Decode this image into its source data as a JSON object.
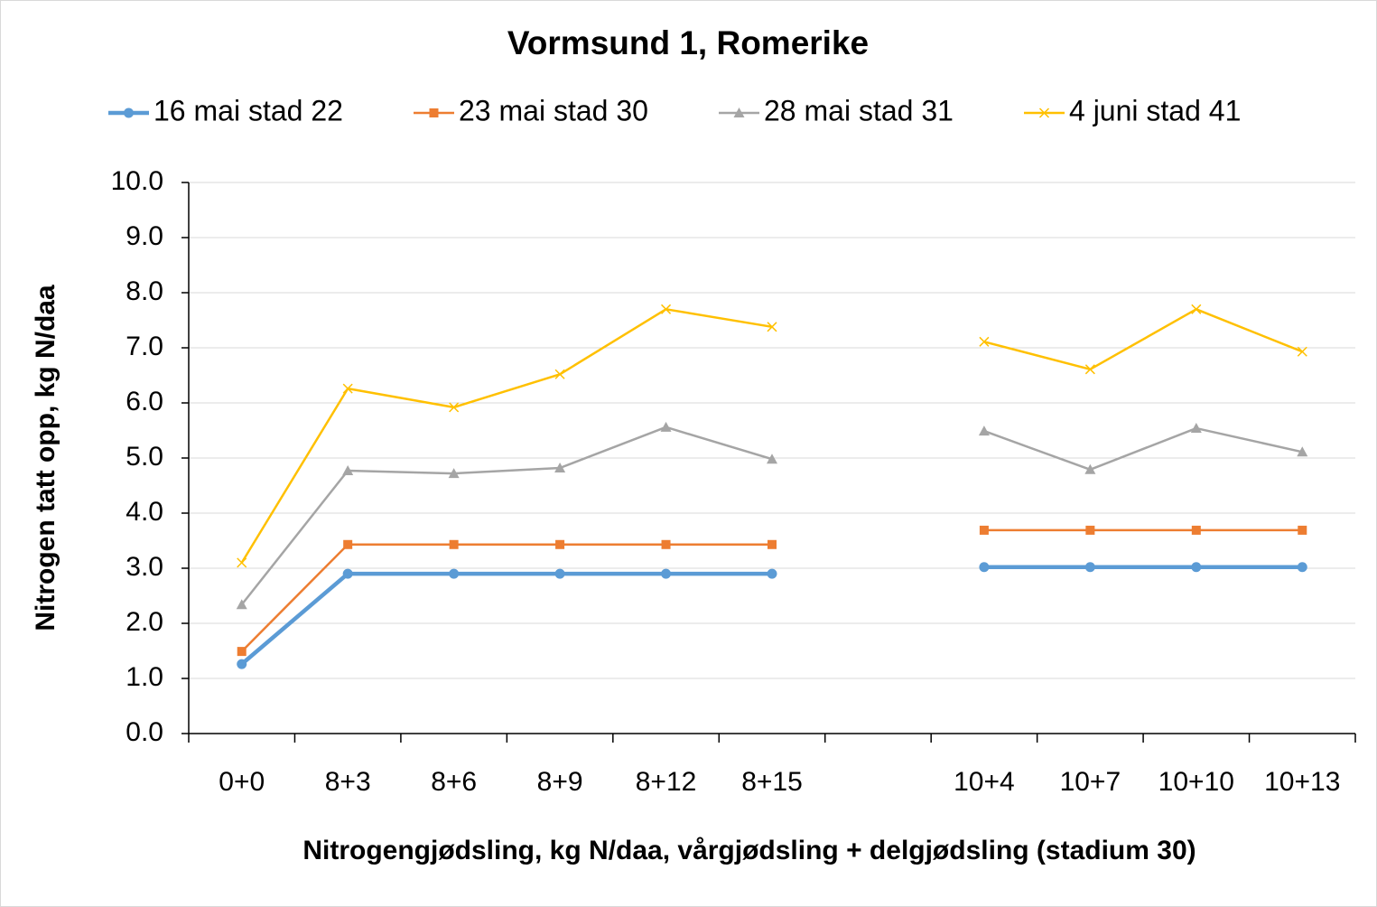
{
  "chart_data": {
    "type": "line",
    "title": "Vormsund 1, Romerike",
    "x_label": "Nitrogengjødsling, kg N/daa, vårgjødsling + delgjødsling (stadium 30)",
    "y_label": "Nitrogen tatt opp, kg N/daa",
    "categories": [
      "0+0",
      "8+3",
      "8+6",
      "8+9",
      "8+12",
      "8+15",
      null,
      "10+4",
      "10+7",
      "10+10",
      "10+13"
    ],
    "series": [
      {
        "name": "16 mai stad 22",
        "color": "#5b9bd5",
        "marker": "circle",
        "values": [
          1.26,
          2.9,
          2.9,
          2.9,
          2.9,
          2.9,
          null,
          3.02,
          3.02,
          3.02,
          3.02
        ]
      },
      {
        "name": "23 mai stad 30",
        "color": "#ed7d31",
        "marker": "square",
        "values": [
          1.49,
          3.43,
          3.43,
          3.43,
          3.43,
          3.43,
          null,
          3.69,
          3.69,
          3.69,
          3.69
        ]
      },
      {
        "name": "28 mai stad 31",
        "color": "#a5a5a5",
        "marker": "triangle",
        "values": [
          2.34,
          4.77,
          4.72,
          4.82,
          5.56,
          4.98,
          null,
          5.49,
          4.79,
          5.54,
          5.11
        ]
      },
      {
        "name": "4 juni stad 41",
        "color": "#ffc000",
        "marker": "x",
        "values": [
          3.1,
          6.26,
          5.92,
          6.52,
          7.7,
          7.38,
          null,
          7.11,
          6.61,
          7.7,
          6.93
        ]
      }
    ],
    "ylim": [
      0,
      10
    ],
    "yticks": [
      {
        "value": 0,
        "label": "0.0"
      },
      {
        "value": 1,
        "label": "1.0"
      },
      {
        "value": 2,
        "label": "2.0"
      },
      {
        "value": 3,
        "label": "3.0"
      },
      {
        "value": 4,
        "label": "4.0"
      },
      {
        "value": 5,
        "label": "5.0"
      },
      {
        "value": 6,
        "label": "6.0"
      },
      {
        "value": 7,
        "label": "7.0"
      },
      {
        "value": 8,
        "label": "8.0"
      },
      {
        "value": 9,
        "label": "9.0"
      },
      {
        "value": 10,
        "label": "10.0"
      }
    ],
    "grid": true,
    "legend": "top"
  }
}
